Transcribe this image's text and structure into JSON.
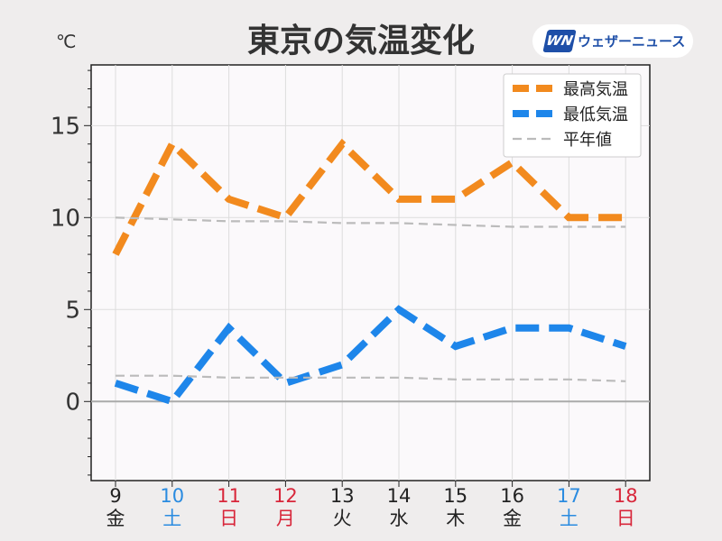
{
  "header": {
    "title": "東京の気温変化",
    "unit": "℃",
    "logo_mark": "WN",
    "logo_text": "ウェザーニュース"
  },
  "colors": {
    "high": "#f28a1e",
    "low": "#1e86ea",
    "normal": "#bbbbbb",
    "weekday": "#222222",
    "saturday": "#2a8be0",
    "sunday_holiday": "#d8263a"
  },
  "chart_data": {
    "type": "line",
    "ylim": [
      -4.3,
      18.3
    ],
    "yticks": [
      0,
      5,
      10,
      15
    ],
    "grid": true,
    "legend_position": "top-right",
    "categories": [
      {
        "day": "9",
        "weekday": "金",
        "kind": "weekday"
      },
      {
        "day": "10",
        "weekday": "土",
        "kind": "saturday"
      },
      {
        "day": "11",
        "weekday": "日",
        "kind": "sunday_holiday"
      },
      {
        "day": "12",
        "weekday": "月",
        "kind": "sunday_holiday"
      },
      {
        "day": "13",
        "weekday": "火",
        "kind": "weekday"
      },
      {
        "day": "14",
        "weekday": "水",
        "kind": "weekday"
      },
      {
        "day": "15",
        "weekday": "木",
        "kind": "weekday"
      },
      {
        "day": "16",
        "weekday": "金",
        "kind": "weekday"
      },
      {
        "day": "17",
        "weekday": "土",
        "kind": "saturday"
      },
      {
        "day": "18",
        "weekday": "日",
        "kind": "sunday_holiday"
      }
    ],
    "series": [
      {
        "name": "最高気温",
        "key": "high",
        "style": "dashed-thick",
        "values": [
          8,
          14,
          11,
          10,
          14,
          11,
          11,
          13,
          10,
          10
        ]
      },
      {
        "name": "最低気温",
        "key": "low",
        "style": "dashed-thick",
        "values": [
          1,
          0,
          4,
          1,
          2,
          5,
          3,
          4,
          4,
          3
        ]
      },
      {
        "name": "平年値",
        "key": "normal_high",
        "style": "dashed-thin",
        "values": [
          10.0,
          9.9,
          9.8,
          9.8,
          9.7,
          9.7,
          9.6,
          9.5,
          9.5,
          9.5
        ]
      },
      {
        "name": "",
        "key": "normal_low",
        "style": "dashed-thin",
        "values": [
          1.4,
          1.4,
          1.3,
          1.3,
          1.3,
          1.3,
          1.2,
          1.2,
          1.2,
          1.1
        ]
      }
    ]
  }
}
